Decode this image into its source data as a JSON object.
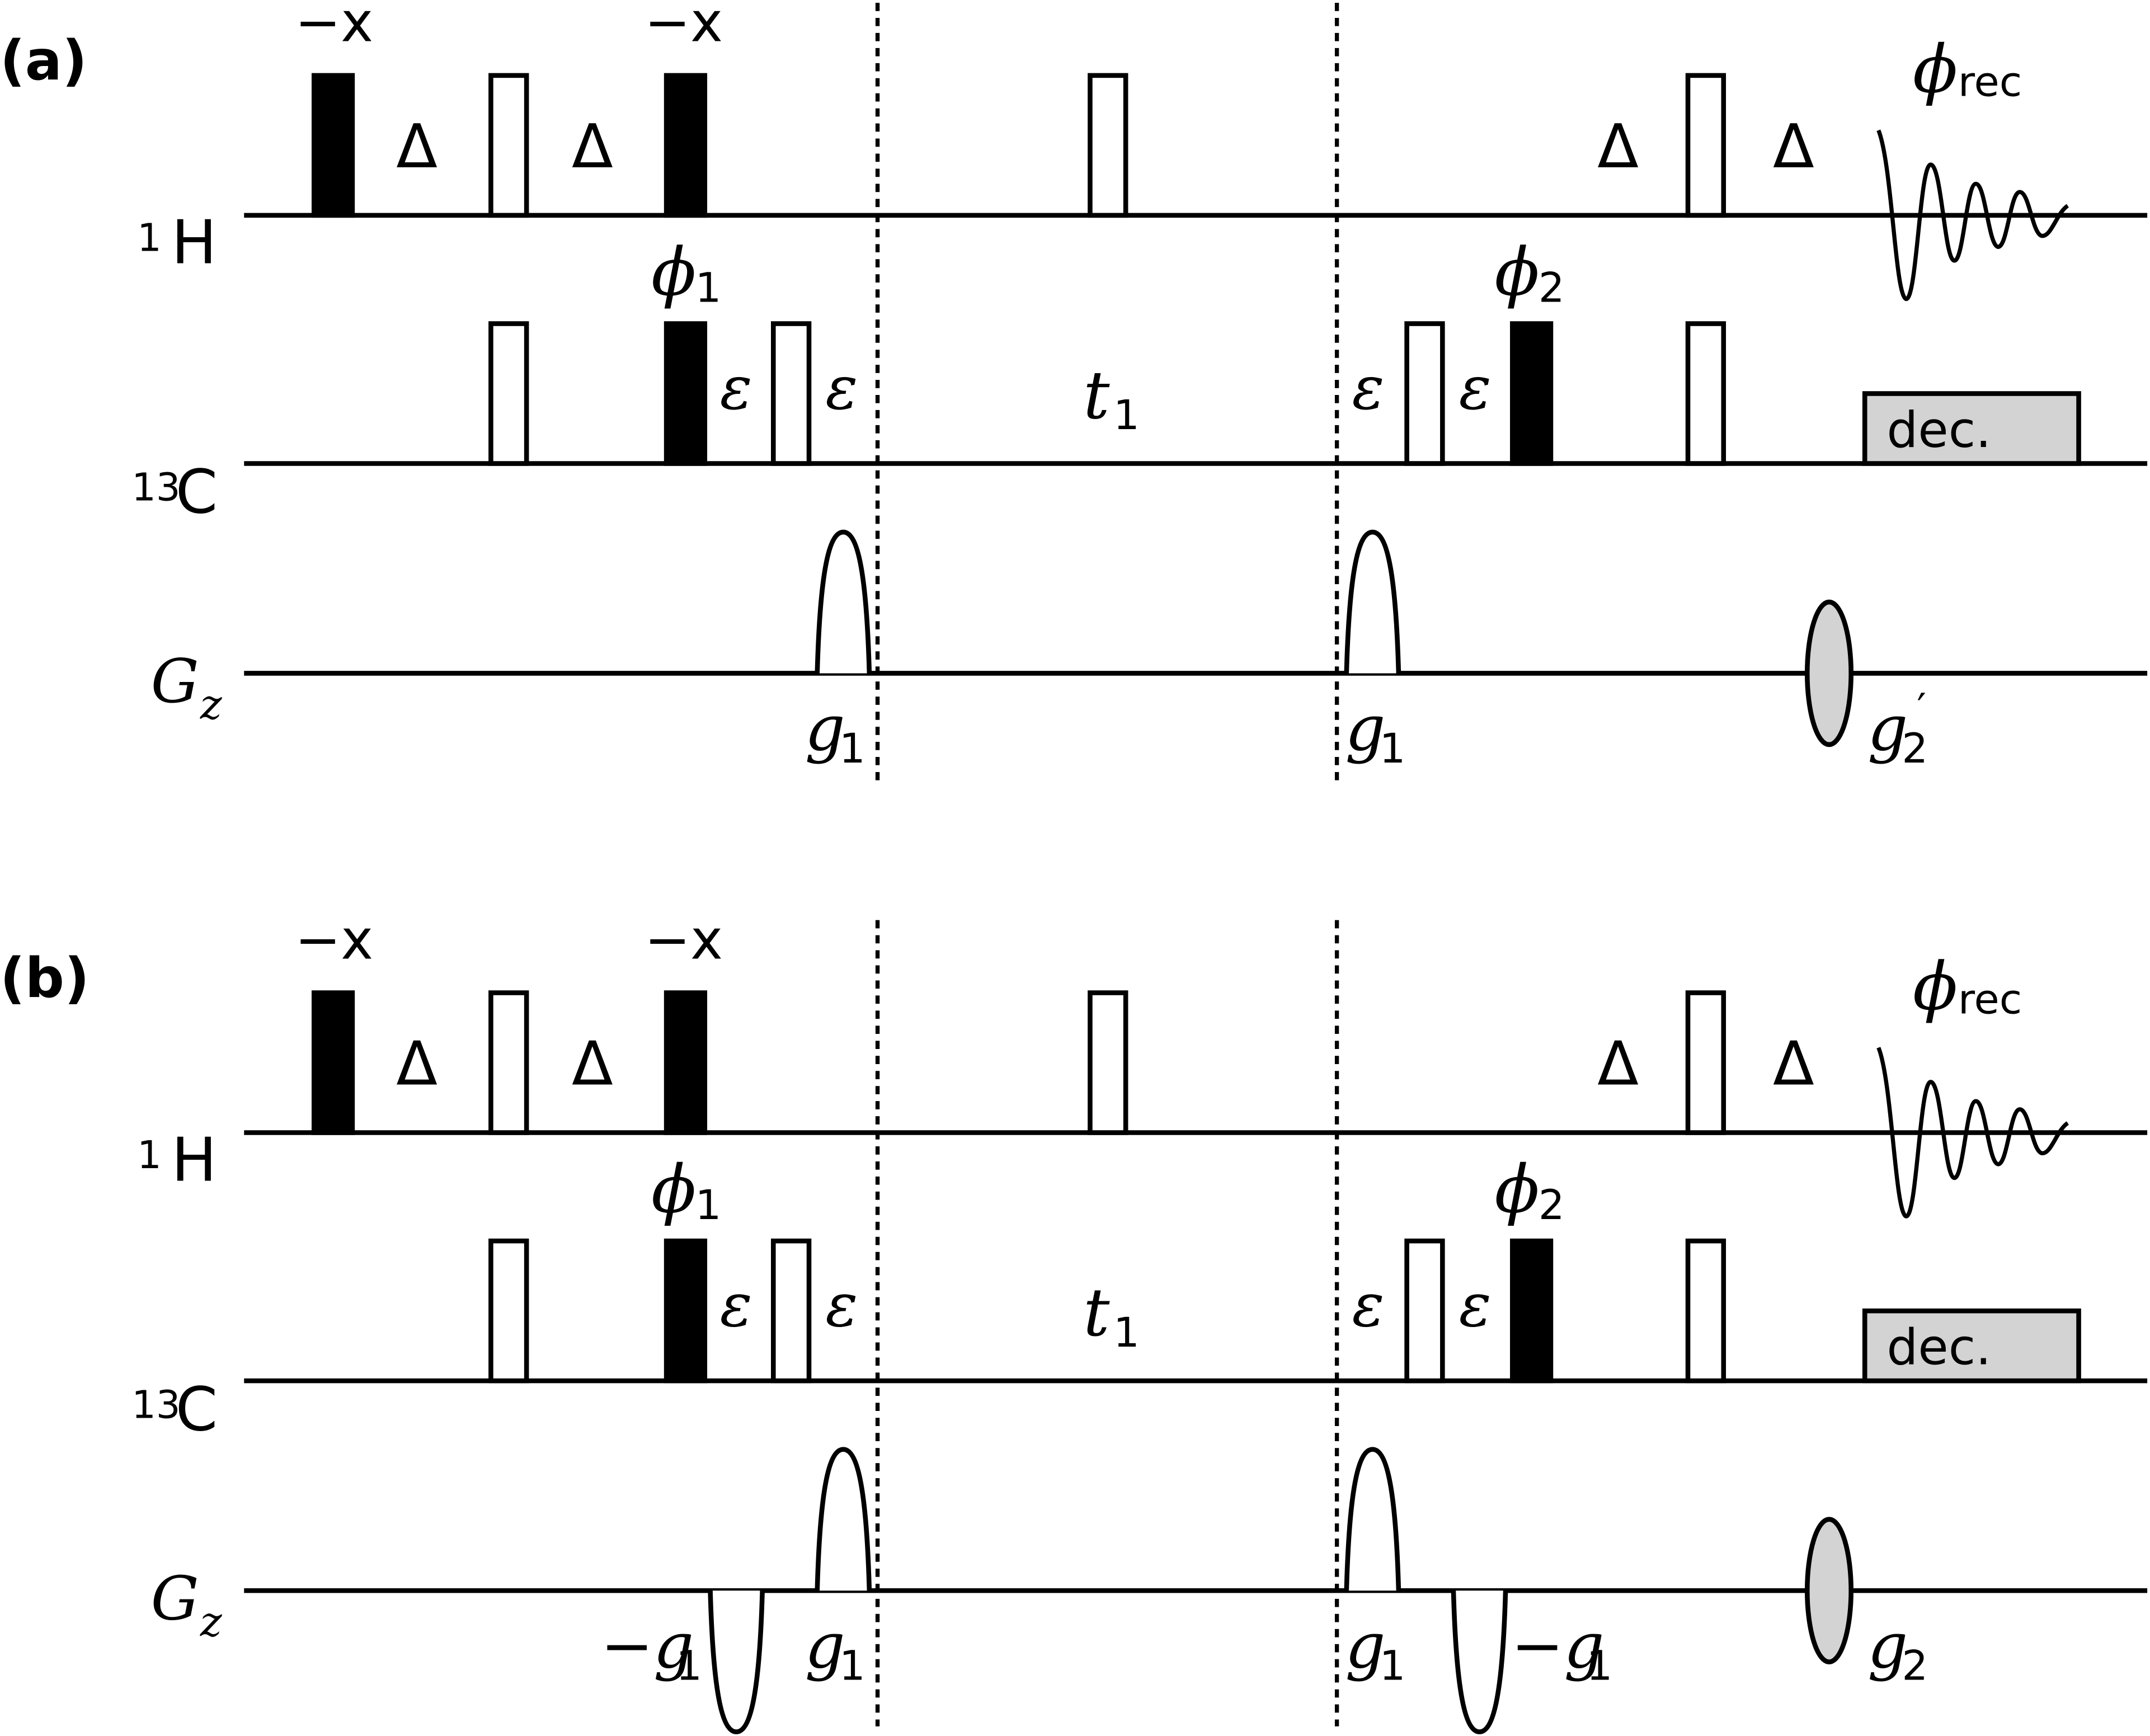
{
  "panels": [
    {
      "label": "(a)",
      "channels": {
        "h": "H",
        "h_iso": "1",
        "c": "C",
        "c_iso": "13",
        "g": "G",
        "g_sub": "z"
      },
      "phases": {
        "xa": "−x",
        "xb": "−x",
        "phi1": "ϕ",
        "phi1_sub": "1",
        "phi2": "ϕ",
        "phi2_sub": "2",
        "rec": "ϕ",
        "rec_sub": "rec"
      },
      "delays": {
        "delta": "Δ",
        "eps": "ε",
        "t1": "t",
        "t1_sub": "1"
      },
      "decoupling": "dec.",
      "gradients": {
        "g1a": "g",
        "g1a_sub": "1",
        "g1b": "g",
        "g1b_sub": "1",
        "g2": "g",
        "g2_sub": "2",
        "g2_prime": "′"
      }
    },
    {
      "label": "(b)",
      "channels": {
        "h": "H",
        "h_iso": "1",
        "c": "C",
        "c_iso": "13",
        "g": "G",
        "g_sub": "z"
      },
      "phases": {
        "xa": "−x",
        "xb": "−x",
        "phi1": "ϕ",
        "phi1_sub": "1",
        "phi2": "ϕ",
        "phi2_sub": "2",
        "rec": "ϕ",
        "rec_sub": "rec"
      },
      "delays": {
        "delta": "Δ",
        "eps": "ε",
        "t1": "t",
        "t1_sub": "1"
      },
      "decoupling": "dec.",
      "gradients": {
        "ng1a": "−g",
        "ng1a_sub": "1",
        "g1a": "g",
        "g1a_sub": "1",
        "g1b": "g",
        "g1b_sub": "1",
        "ng1b": "−g",
        "ng1b_sub": "1",
        "g2": "g",
        "g2_sub": "2"
      }
    }
  ],
  "colors": {
    "ink": "#000000",
    "dec_fill": "#d3d3d3",
    "grad_fill": "#d3d3d3"
  }
}
